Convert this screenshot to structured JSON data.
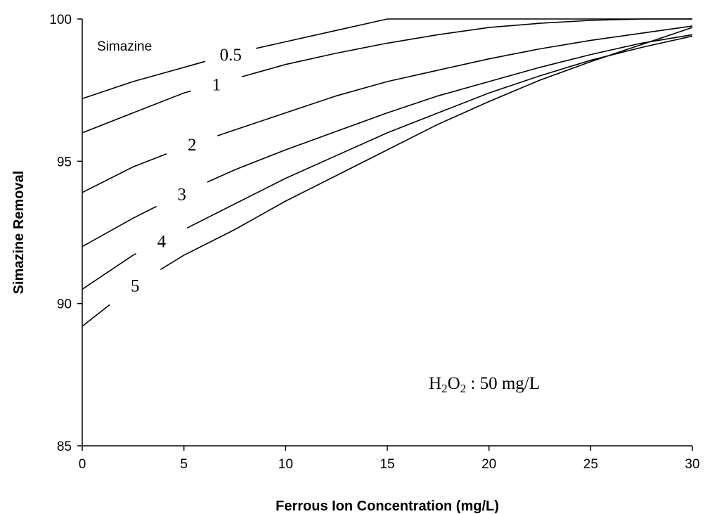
{
  "chart_data": {
    "type": "line",
    "corner_label": "Simazine",
    "xlabel": "Ferrous Ion Concentration (mg/L)",
    "ylabel": "Simazine Removal",
    "xlim": [
      0,
      30
    ],
    "ylim": [
      85,
      100
    ],
    "xticks": [
      0,
      5,
      10,
      15,
      20,
      25,
      30
    ],
    "yticks": [
      85,
      90,
      95,
      100
    ],
    "grid": false,
    "annotation": {
      "main": "H",
      "sub1": "2",
      "mid": "O",
      "sub2": "2",
      "tail": " : 50  mg/L"
    },
    "series": [
      {
        "name": "0.5",
        "x": [
          0,
          2.5,
          5,
          7.5,
          10,
          12.5,
          15,
          17.5,
          20,
          22.5,
          25,
          27.5,
          30
        ],
        "y": [
          97.2,
          97.8,
          98.3,
          98.8,
          99.2,
          99.6,
          100.0,
          100.0,
          100.0,
          100.0,
          100.0,
          100.0,
          100.0
        ]
      },
      {
        "name": "1",
        "x": [
          0,
          2.5,
          5,
          7.5,
          10,
          12.5,
          15,
          17.5,
          20,
          22.5,
          25,
          27.5,
          30
        ],
        "y": [
          96.0,
          96.7,
          97.4,
          97.9,
          98.4,
          98.8,
          99.15,
          99.45,
          99.7,
          99.85,
          99.95,
          100.0,
          100.0
        ]
      },
      {
        "name": "2",
        "x": [
          0,
          2.5,
          5,
          7.5,
          10,
          12.5,
          15,
          17.5,
          20,
          22.5,
          25,
          27.5,
          30
        ],
        "y": [
          93.9,
          94.8,
          95.5,
          96.1,
          96.7,
          97.3,
          97.8,
          98.2,
          98.6,
          98.95,
          99.25,
          99.5,
          99.75
        ]
      },
      {
        "name": "3",
        "x": [
          0,
          2.5,
          5,
          7.5,
          10,
          12.5,
          15,
          17.5,
          20,
          22.5,
          25,
          27.5,
          30
        ],
        "y": [
          92.0,
          93.0,
          93.9,
          94.7,
          95.4,
          96.05,
          96.7,
          97.3,
          97.8,
          98.3,
          98.75,
          99.15,
          99.45
        ]
      },
      {
        "name": "4",
        "x": [
          0,
          2.5,
          5,
          7.5,
          10,
          12.5,
          15,
          17.5,
          20,
          22.5,
          25,
          27.5,
          30
        ],
        "y": [
          90.5,
          91.7,
          92.6,
          93.5,
          94.4,
          95.2,
          96.0,
          96.7,
          97.4,
          98.0,
          98.55,
          99.0,
          99.4
        ]
      },
      {
        "name": "5",
        "x": [
          0,
          2.5,
          5,
          7.5,
          10,
          12.5,
          15,
          17.5,
          20,
          22.5,
          25,
          27.5,
          30
        ],
        "y": [
          89.2,
          90.6,
          91.7,
          92.6,
          93.6,
          94.5,
          95.4,
          96.3,
          97.1,
          97.85,
          98.5,
          99.1,
          99.7
        ]
      }
    ]
  }
}
